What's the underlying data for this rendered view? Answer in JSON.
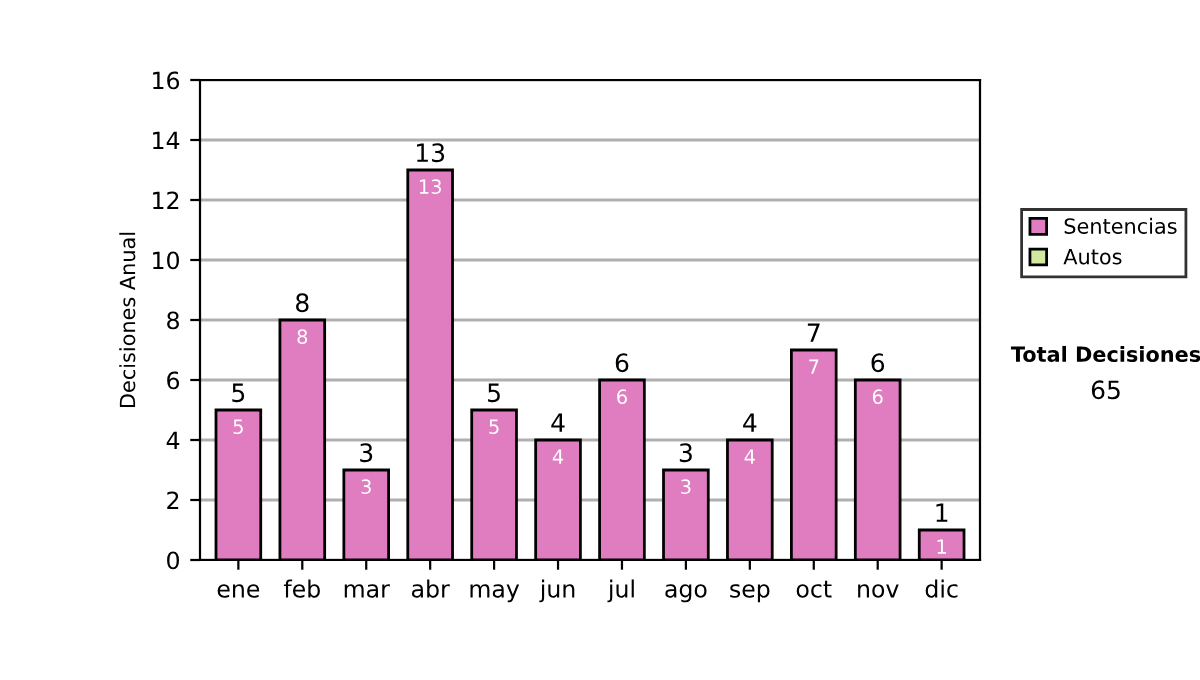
{
  "chart_data": {
    "type": "bar",
    "stacked": true,
    "ylabel": "Decisiones Anual",
    "categories": [
      "ene",
      "feb",
      "mar",
      "abr",
      "may",
      "jun",
      "jul",
      "ago",
      "sep",
      "oct",
      "nov",
      "dic"
    ],
    "series": [
      {
        "name": "Sentencias",
        "color": "#e07cc0",
        "values": [
          5,
          8,
          3,
          13,
          5,
          4,
          6,
          3,
          4,
          7,
          6,
          1
        ],
        "value_labels": [
          "5",
          "8",
          "3",
          "13",
          "5",
          "4",
          "6",
          "3",
          "4",
          "7",
          "6",
          "1"
        ]
      },
      {
        "name": "Autos",
        "color": "#d4e8a0",
        "values": [
          null,
          null,
          null,
          null,
          null,
          null,
          null,
          null,
          null,
          null,
          null,
          null
        ]
      }
    ],
    "totals": [
      "5",
      "8",
      "3",
      "13",
      "5",
      "4",
      "6",
      "3",
      "4",
      "7",
      "6",
      "1"
    ],
    "ylim": [
      0,
      16
    ],
    "yticks": [
      0,
      2,
      4,
      6,
      8,
      10,
      12,
      14,
      16
    ],
    "grid": "y",
    "legend": "right",
    "annotations": [
      "Total Decisiones",
      "65"
    ]
  }
}
